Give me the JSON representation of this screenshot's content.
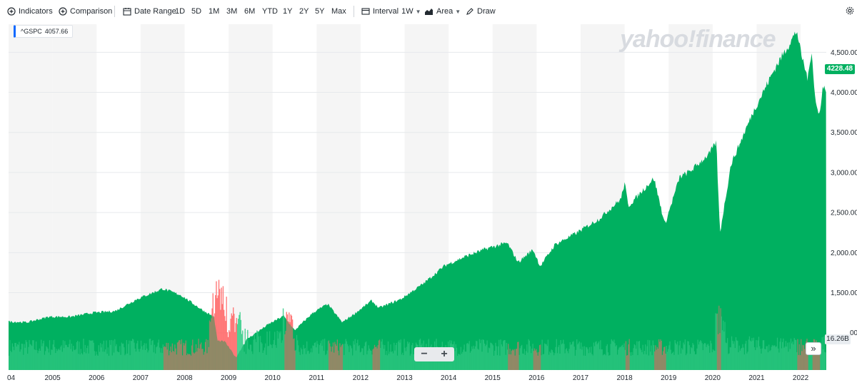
{
  "toolbar": {
    "indicators_label": "Indicators",
    "comparison_label": "Comparison",
    "date_range_label": "Date Range",
    "ranges": [
      "1D",
      "5D",
      "1M",
      "3M",
      "6M",
      "YTD",
      "1Y",
      "2Y",
      "5Y",
      "Max"
    ],
    "interval_label": "Interval",
    "interval_value": "1W",
    "chart_type_label": "Area",
    "draw_label": "Draw"
  },
  "ticker": {
    "symbol": "^GSPC",
    "value": "4057.66"
  },
  "last_price_badge": "4228.48",
  "volume_badge": "16.26B",
  "watermark": "yahoo!finance",
  "zoom": {
    "minus": "−",
    "plus": "+"
  },
  "scroll_end_glyph": "»",
  "colors": {
    "area": "#00b060",
    "vol_up": "#3fcf8e",
    "vol_down": "#ff6b6b",
    "band": "#f5f5f5",
    "badge": "#00b060"
  },
  "chart_data": {
    "type": "area",
    "series": [
      {
        "values": [
          [
            "2004-01",
            1140
          ],
          [
            "2004-06",
            1130
          ],
          [
            "2004-12",
            1200
          ],
          [
            "2005-06",
            1200
          ],
          [
            "2005-12",
            1250
          ],
          [
            "2006-06",
            1270
          ],
          [
            "2006-12",
            1420
          ],
          [
            "2007-07",
            1550
          ],
          [
            "2007-12",
            1470
          ],
          [
            "2008-06",
            1280
          ],
          [
            "2008-09",
            1200
          ],
          [
            "2008-10",
            900
          ],
          [
            "2008-12",
            890
          ],
          [
            "2009-03",
            690
          ],
          [
            "2009-06",
            920
          ],
          [
            "2009-12",
            1110
          ],
          [
            "2010-04",
            1210
          ],
          [
            "2010-07",
            1030
          ],
          [
            "2010-12",
            1250
          ],
          [
            "2011-04",
            1360
          ],
          [
            "2011-08",
            1130
          ],
          [
            "2011-12",
            1260
          ],
          [
            "2012-04",
            1400
          ],
          [
            "2012-06",
            1310
          ],
          [
            "2012-12",
            1420
          ],
          [
            "2013-06",
            1610
          ],
          [
            "2013-12",
            1840
          ],
          [
            "2014-06",
            1960
          ],
          [
            "2014-12",
            2060
          ],
          [
            "2015-05",
            2120
          ],
          [
            "2015-08",
            1880
          ],
          [
            "2015-12",
            2040
          ],
          [
            "2016-02",
            1830
          ],
          [
            "2016-06",
            2100
          ],
          [
            "2016-12",
            2250
          ],
          [
            "2017-06",
            2420
          ],
          [
            "2017-12",
            2670
          ],
          [
            "2018-01",
            2870
          ],
          [
            "2018-02",
            2580
          ],
          [
            "2018-09",
            2930
          ],
          [
            "2018-12",
            2350
          ],
          [
            "2019-04",
            2940
          ],
          [
            "2019-07",
            3020
          ],
          [
            "2019-12",
            3230
          ],
          [
            "2020-02",
            3380
          ],
          [
            "2020-03",
            2240
          ],
          [
            "2020-06",
            3100
          ],
          [
            "2020-12",
            3750
          ],
          [
            "2021-06",
            4300
          ],
          [
            "2021-12",
            4770
          ],
          [
            "2022-01",
            4500
          ],
          [
            "2022-03",
            4160
          ],
          [
            "2022-04",
            4540
          ],
          [
            "2022-05",
            3900
          ],
          [
            "2022-06",
            3700
          ],
          [
            "2022-07",
            4050
          ]
        ]
      },
      {
        "values": []
      }
    ],
    "x_range": [
      "2004-01",
      "2022-08"
    ],
    "x_ticks": [
      "04",
      "2005",
      "2006",
      "2007",
      "2008",
      "2009",
      "2010",
      "2011",
      "2012",
      "2013",
      "2014",
      "2015",
      "2016",
      "2017",
      "2018",
      "2019",
      "2020",
      "2021",
      "2022"
    ],
    "y_ticks": [
      "1,500.00",
      "2,000.00",
      "2,500.00",
      "3,000.00",
      "3,500.00",
      "4,000.00",
      "4,500.00"
    ],
    "y_tick_values": [
      1500,
      2000,
      2500,
      3000,
      3500,
      4000,
      4500
    ],
    "ylim": [
      535,
      4850
    ],
    "grid": true,
    "alternating_year_bands": true,
    "volume": {
      "unit": "B",
      "ylim": [
        0,
        16.26
      ],
      "spike_periods": [
        "2008-09",
        "2008-10",
        "2008-11",
        "2009-01",
        "2009-03",
        "2010-05",
        "2020-03"
      ],
      "spike_values": [
        13.5,
        14.6,
        12.5,
        10.0,
        9.5,
        10.2,
        11.0
      ],
      "base_range": [
        2.5,
        5.5
      ]
    },
    "last_value": "4228.48"
  }
}
